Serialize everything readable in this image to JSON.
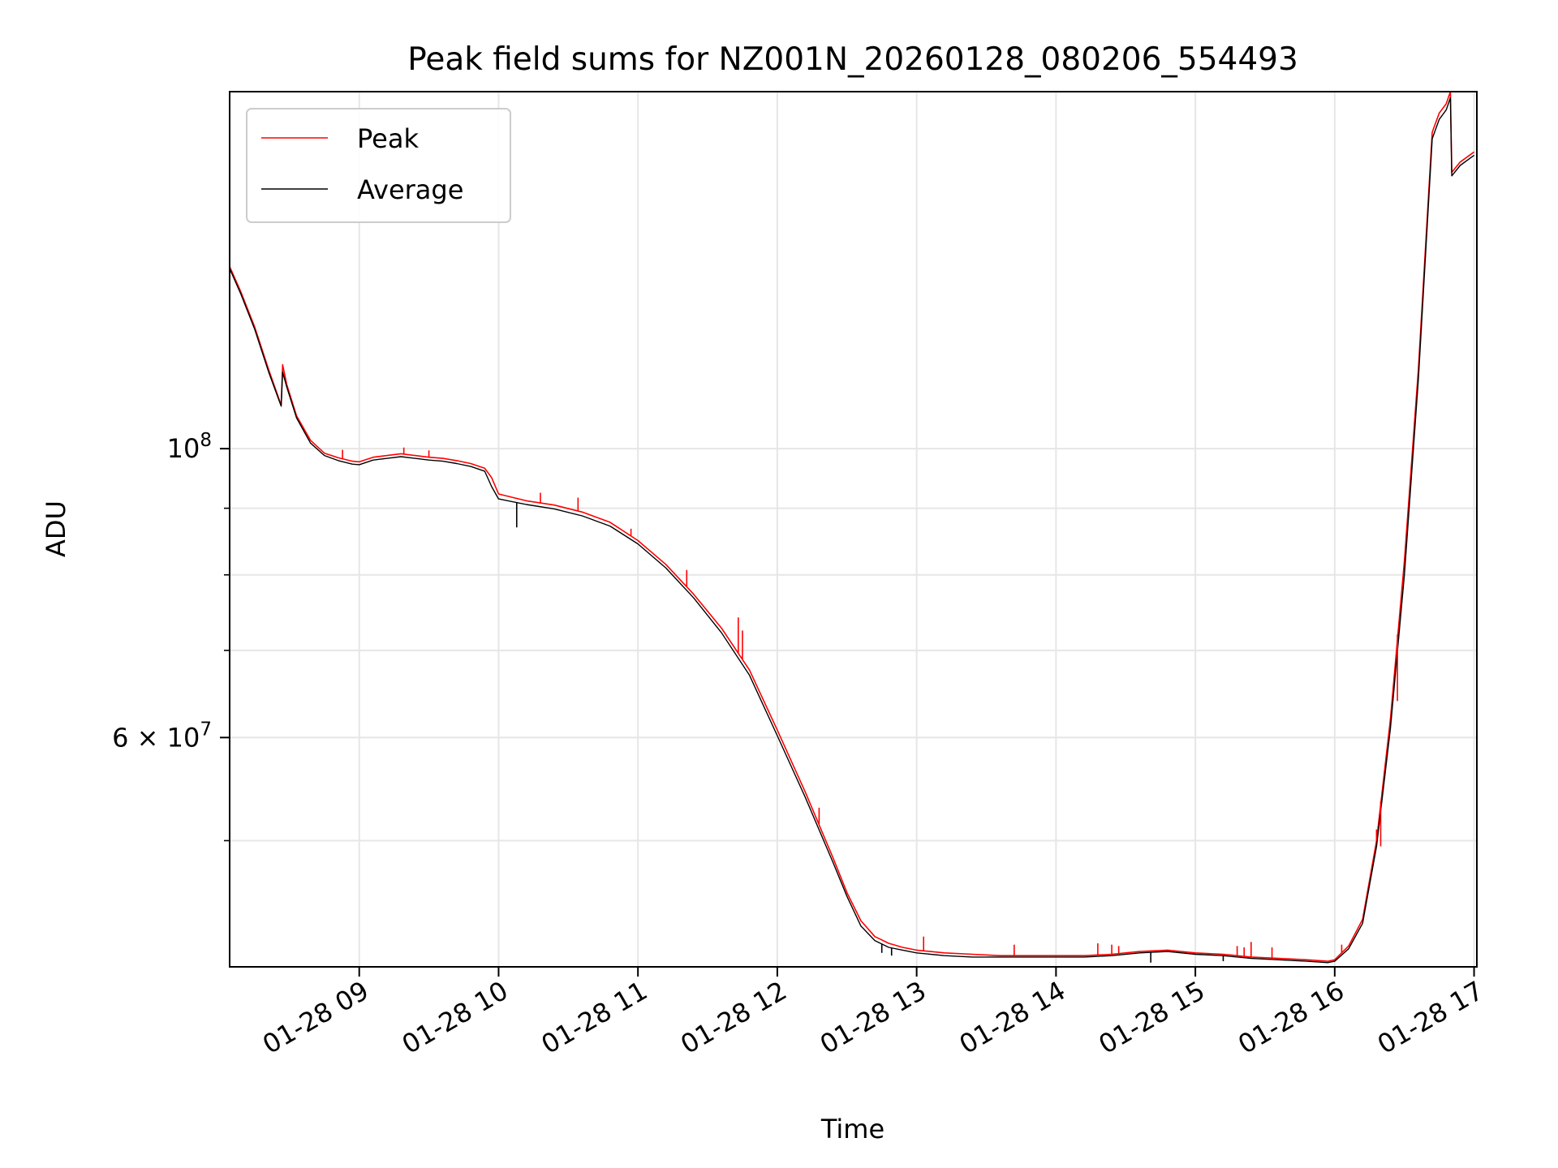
{
  "chart_data": {
    "type": "line",
    "title": "Peak field sums for NZ001N_20260128_080206_554493",
    "xlabel": "Time",
    "ylabel": "ADU",
    "y_scale": "log",
    "ylim": [
      40000000,
      188000000
    ],
    "xlim_hours": [
      8.07,
      17.02
    ],
    "grid": true,
    "legend_position": "upper-left",
    "x_ticks": [
      {
        "hour": 9,
        "label": "01-28 09"
      },
      {
        "hour": 10,
        "label": "01-28 10"
      },
      {
        "hour": 11,
        "label": "01-28 11"
      },
      {
        "hour": 12,
        "label": "01-28 12"
      },
      {
        "hour": 13,
        "label": "01-28 13"
      },
      {
        "hour": 14,
        "label": "01-28 14"
      },
      {
        "hour": 15,
        "label": "01-28 15"
      },
      {
        "hour": 16,
        "label": "01-28 16"
      },
      {
        "hour": 17,
        "label": "01-28 17"
      }
    ],
    "y_major_ticks": [
      {
        "value": 100000000,
        "label_base": "10",
        "label_exp": "8"
      },
      {
        "value": 60000000,
        "label_base": "6 × 10",
        "label_exp": "7"
      }
    ],
    "y_minor_ticks": [
      50000000,
      70000000,
      80000000,
      90000000
    ],
    "series": [
      {
        "name": "Peak",
        "color": "#ff0000",
        "x_hours": [
          8.07,
          8.15,
          8.25,
          8.35,
          8.44,
          8.45,
          8.48,
          8.55,
          8.65,
          8.75,
          8.85,
          8.95,
          9.0,
          9.1,
          9.2,
          9.3,
          9.4,
          9.5,
          9.6,
          9.7,
          9.8,
          9.9,
          9.95,
          10.0,
          10.2,
          10.4,
          10.6,
          10.8,
          11.0,
          11.2,
          11.4,
          11.6,
          11.8,
          12.0,
          12.2,
          12.4,
          12.5,
          12.6,
          12.7,
          12.8,
          12.9,
          13.0,
          13.2,
          13.4,
          13.6,
          13.8,
          14.0,
          14.2,
          14.4,
          14.6,
          14.8,
          15.0,
          15.2,
          15.4,
          15.6,
          15.8,
          15.95,
          16.0,
          16.1,
          16.2,
          16.3,
          16.4,
          16.5,
          16.6,
          16.7,
          16.75,
          16.8,
          16.83,
          16.84,
          16.9,
          17.0
        ],
        "values": [
          138000000,
          132000000,
          124000000,
          115000000,
          108000000,
          116000000,
          112000000,
          106000000,
          101500000,
          99200000,
          98400000,
          97800000,
          97700000,
          98500000,
          98800000,
          99100000,
          98800000,
          98500000,
          98300000,
          97900000,
          97400000,
          96600000,
          95000000,
          92300000,
          91200000,
          90500000,
          89400000,
          87800000,
          85000000,
          81500000,
          77300000,
          72800000,
          67600000,
          60800000,
          54500000,
          48500000,
          45600000,
          43400000,
          42200000,
          41700000,
          41400000,
          41200000,
          41000000,
          40900000,
          40800000,
          40800000,
          40800000,
          40800000,
          40900000,
          41100000,
          41200000,
          41000000,
          40900000,
          40700000,
          40600000,
          40500000,
          40400000,
          40500000,
          41500000,
          43500000,
          50000000,
          62000000,
          82000000,
          115000000,
          175000000,
          181000000,
          184000000,
          188000000,
          163000000,
          166000000,
          169000000
        ]
      },
      {
        "name": "Average",
        "color": "#000000",
        "x_hours": [
          8.07,
          8.15,
          8.25,
          8.35,
          8.44,
          8.45,
          8.48,
          8.55,
          8.65,
          8.75,
          8.85,
          8.95,
          9.0,
          9.1,
          9.2,
          9.3,
          9.4,
          9.5,
          9.6,
          9.7,
          9.8,
          9.9,
          9.95,
          10.0,
          10.2,
          10.4,
          10.6,
          10.8,
          11.0,
          11.2,
          11.4,
          11.6,
          11.8,
          12.0,
          12.2,
          12.4,
          12.5,
          12.6,
          12.7,
          12.8,
          12.9,
          13.0,
          13.2,
          13.4,
          13.6,
          13.8,
          14.0,
          14.2,
          14.4,
          14.6,
          14.8,
          15.0,
          15.2,
          15.4,
          15.6,
          15.8,
          15.95,
          16.0,
          16.1,
          16.2,
          16.3,
          16.4,
          16.5,
          16.6,
          16.7,
          16.75,
          16.8,
          16.83,
          16.84,
          16.9,
          17.0
        ],
        "values": [
          137500000,
          131500000,
          123500000,
          114500000,
          107800000,
          114500000,
          111500000,
          105600000,
          101000000,
          98800000,
          97900000,
          97300000,
          97200000,
          98000000,
          98300000,
          98600000,
          98300000,
          98000000,
          97800000,
          97400000,
          96900000,
          96100000,
          93500000,
          91500000,
          90600000,
          89900000,
          88800000,
          87200000,
          84500000,
          81000000,
          76800000,
          72200000,
          67000000,
          60200000,
          54000000,
          48100000,
          45300000,
          43000000,
          41900000,
          41400000,
          41200000,
          41000000,
          40800000,
          40700000,
          40700000,
          40700000,
          40700000,
          40700000,
          40800000,
          41000000,
          41100000,
          40900000,
          40800000,
          40600000,
          40500000,
          40400000,
          40300000,
          40400000,
          41300000,
          43200000,
          49500000,
          61000000,
          80000000,
          113000000,
          173000000,
          179000000,
          182000000,
          186000000,
          162000000,
          165000000,
          168000000
        ]
      }
    ],
    "peak_spikes": [
      {
        "hour": 8.88,
        "value": 99800000
      },
      {
        "hour": 9.32,
        "value": 100200000
      },
      {
        "hour": 9.5,
        "value": 99700000
      },
      {
        "hour": 10.3,
        "value": 92500000
      },
      {
        "hour": 10.57,
        "value": 91700000
      },
      {
        "hour": 10.95,
        "value": 86800000
      },
      {
        "hour": 11.35,
        "value": 80700000
      },
      {
        "hour": 11.72,
        "value": 74200000
      },
      {
        "hour": 11.75,
        "value": 72500000
      },
      {
        "hour": 12.3,
        "value": 53000000
      },
      {
        "hour": 13.05,
        "value": 42200000
      },
      {
        "hour": 13.7,
        "value": 41600000
      },
      {
        "hour": 14.3,
        "value": 41700000
      },
      {
        "hour": 14.4,
        "value": 41600000
      },
      {
        "hour": 14.45,
        "value": 41500000
      },
      {
        "hour": 15.3,
        "value": 41500000
      },
      {
        "hour": 15.35,
        "value": 41400000
      },
      {
        "hour": 15.4,
        "value": 41800000
      },
      {
        "hour": 15.55,
        "value": 41400000
      },
      {
        "hour": 16.05,
        "value": 41600000
      },
      {
        "hour": 16.3,
        "value": 51000000
      },
      {
        "hour": 16.33,
        "value": 49500000
      },
      {
        "hour": 16.45,
        "value": 64000000
      }
    ],
    "average_dips": [
      {
        "hour": 10.13,
        "value": 87000000
      },
      {
        "hour": 12.75,
        "value": 41000000
      },
      {
        "hour": 12.82,
        "value": 40800000
      },
      {
        "hour": 14.68,
        "value": 40300000
      },
      {
        "hour": 15.2,
        "value": 40400000
      }
    ]
  }
}
